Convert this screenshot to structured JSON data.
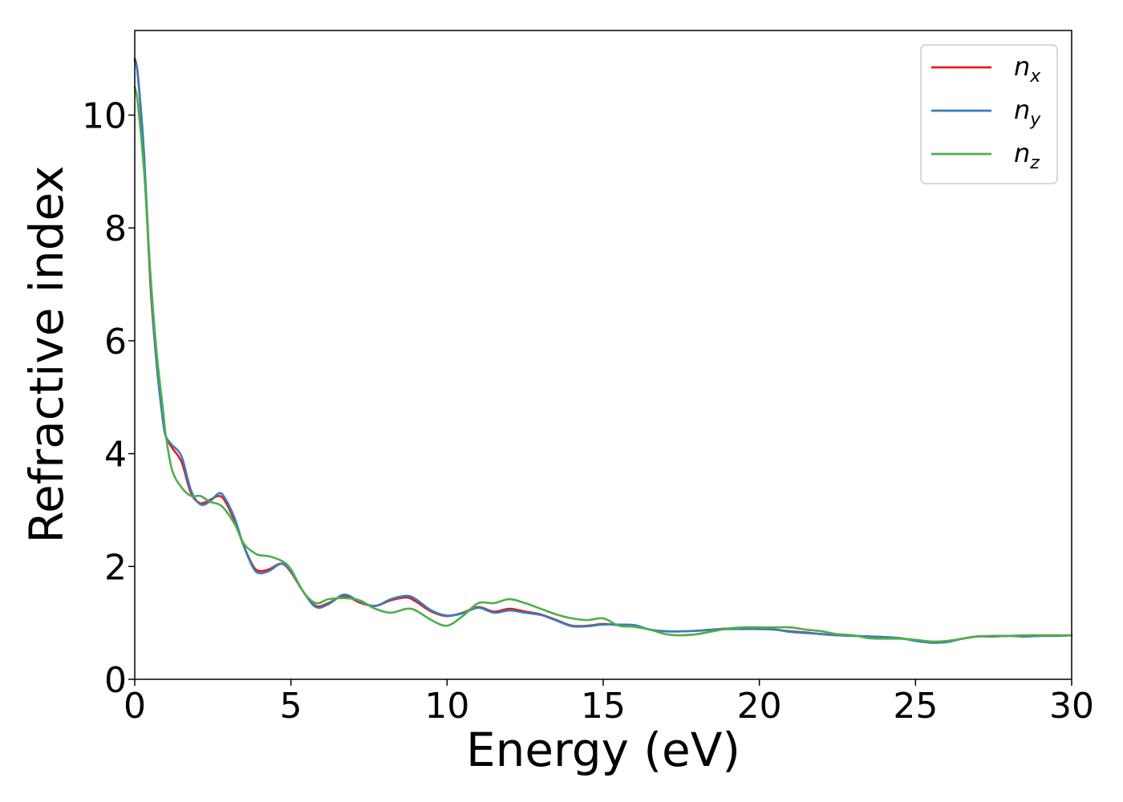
{
  "chart_data": {
    "type": "line",
    "xlabel": "Energy (eV)",
    "ylabel": "Refractive index",
    "xlim": [
      0,
      30
    ],
    "ylim": [
      0,
      11.5
    ],
    "xticks": [
      0,
      5,
      10,
      15,
      20,
      25,
      30
    ],
    "yticks": [
      0,
      2,
      4,
      6,
      8,
      10
    ],
    "grid": false,
    "legend_position": "top-right",
    "legend": [
      {
        "base": "n",
        "sub": "x"
      },
      {
        "base": "n",
        "sub": "y"
      },
      {
        "base": "n",
        "sub": "z"
      }
    ],
    "series": [
      {
        "name": "n_x",
        "color": "#e41a1c",
        "x": [
          0,
          0.1,
          0.3,
          0.5,
          0.7,
          0.9,
          1.0,
          1.2,
          1.5,
          1.8,
          2.1,
          2.4,
          2.7,
          2.9,
          3.2,
          3.5,
          3.8,
          4.0,
          4.3,
          4.7,
          5.0,
          5.4,
          5.8,
          6.2,
          6.7,
          7.2,
          7.7,
          8.2,
          8.7,
          9.0,
          9.5,
          10.0,
          10.5,
          11.0,
          11.5,
          12.0,
          12.5,
          13.0,
          13.5,
          14.0,
          14.5,
          15.0,
          15.5,
          16.0,
          16.5,
          17.0,
          17.5,
          18.0,
          18.5,
          19.0,
          19.5,
          20.0,
          20.5,
          21.0,
          21.5,
          22.0,
          22.5,
          23.0,
          23.5,
          24.0,
          24.5,
          25.0,
          25.5,
          26.0,
          26.5,
          27.0,
          27.5,
          28.0,
          28.5,
          29.0,
          29.5,
          30.0
        ],
        "y": [
          11.0,
          10.7,
          9.2,
          7.0,
          5.6,
          4.6,
          4.3,
          4.1,
          3.85,
          3.3,
          3.12,
          3.18,
          3.25,
          3.15,
          2.8,
          2.35,
          2.0,
          1.92,
          1.95,
          2.05,
          1.9,
          1.55,
          1.3,
          1.35,
          1.48,
          1.36,
          1.3,
          1.4,
          1.45,
          1.38,
          1.2,
          1.12,
          1.18,
          1.28,
          1.2,
          1.25,
          1.2,
          1.15,
          1.05,
          0.95,
          0.95,
          0.98,
          0.96,
          0.95,
          0.88,
          0.85,
          0.85,
          0.86,
          0.88,
          0.9,
          0.9,
          0.9,
          0.88,
          0.85,
          0.83,
          0.8,
          0.78,
          0.77,
          0.76,
          0.75,
          0.73,
          0.69,
          0.65,
          0.66,
          0.72,
          0.76,
          0.76,
          0.77,
          0.76,
          0.77,
          0.77,
          0.78
        ]
      },
      {
        "name": "n_y",
        "color": "#377eb8",
        "x": [
          0,
          0.1,
          0.3,
          0.5,
          0.7,
          0.9,
          1.0,
          1.2,
          1.5,
          1.8,
          2.1,
          2.4,
          2.7,
          2.9,
          3.2,
          3.5,
          3.8,
          4.0,
          4.3,
          4.7,
          5.0,
          5.4,
          5.8,
          6.2,
          6.7,
          7.2,
          7.7,
          8.2,
          8.7,
          9.0,
          9.5,
          10.0,
          10.5,
          11.0,
          11.5,
          12.0,
          12.5,
          13.0,
          13.5,
          14.0,
          14.5,
          15.0,
          15.5,
          16.0,
          16.5,
          17.0,
          17.5,
          18.0,
          18.5,
          19.0,
          19.5,
          20.0,
          20.5,
          21.0,
          21.5,
          22.0,
          22.5,
          23.0,
          23.5,
          24.0,
          24.5,
          25.0,
          25.5,
          26.0,
          26.5,
          27.0,
          27.5,
          28.0,
          28.5,
          29.0,
          29.5,
          30.0
        ],
        "y": [
          10.95,
          10.7,
          9.3,
          7.1,
          5.6,
          4.6,
          4.3,
          4.15,
          3.95,
          3.35,
          3.1,
          3.15,
          3.3,
          3.2,
          2.85,
          2.35,
          1.97,
          1.88,
          1.92,
          2.05,
          1.92,
          1.55,
          1.28,
          1.33,
          1.5,
          1.38,
          1.3,
          1.42,
          1.48,
          1.42,
          1.22,
          1.13,
          1.17,
          1.27,
          1.18,
          1.22,
          1.18,
          1.14,
          1.04,
          0.94,
          0.94,
          0.97,
          0.97,
          0.96,
          0.88,
          0.85,
          0.85,
          0.86,
          0.88,
          0.89,
          0.89,
          0.89,
          0.88,
          0.84,
          0.82,
          0.8,
          0.78,
          0.77,
          0.76,
          0.75,
          0.73,
          0.68,
          0.65,
          0.66,
          0.72,
          0.76,
          0.76,
          0.77,
          0.76,
          0.77,
          0.77,
          0.78
        ]
      },
      {
        "name": "n_z",
        "color": "#4daf4a",
        "x": [
          0,
          0.1,
          0.3,
          0.5,
          0.7,
          0.9,
          1.0,
          1.2,
          1.5,
          1.8,
          2.1,
          2.4,
          2.7,
          2.9,
          3.2,
          3.5,
          3.8,
          4.0,
          4.3,
          4.7,
          5.0,
          5.4,
          5.8,
          6.2,
          6.7,
          7.2,
          7.7,
          8.2,
          8.7,
          9.0,
          9.5,
          10.0,
          10.5,
          11.0,
          11.5,
          12.0,
          12.5,
          13.0,
          13.5,
          14.0,
          14.5,
          15.0,
          15.5,
          16.0,
          16.5,
          17.0,
          17.5,
          18.0,
          18.5,
          19.0,
          19.5,
          20.0,
          20.5,
          21.0,
          21.5,
          22.0,
          22.5,
          23.0,
          23.5,
          24.0,
          24.5,
          25.0,
          25.5,
          26.0,
          26.5,
          27.0,
          27.5,
          28.0,
          28.5,
          29.0,
          29.5,
          30.0
        ],
        "y": [
          10.5,
          10.2,
          9.0,
          7.2,
          5.8,
          4.8,
          4.3,
          3.7,
          3.4,
          3.25,
          3.25,
          3.15,
          3.1,
          3.0,
          2.75,
          2.4,
          2.25,
          2.2,
          2.18,
          2.1,
          1.95,
          1.55,
          1.35,
          1.42,
          1.44,
          1.4,
          1.25,
          1.18,
          1.25,
          1.22,
          1.05,
          0.95,
          1.12,
          1.35,
          1.35,
          1.42,
          1.35,
          1.25,
          1.15,
          1.08,
          1.05,
          1.08,
          0.95,
          0.93,
          0.88,
          0.8,
          0.78,
          0.8,
          0.85,
          0.9,
          0.92,
          0.92,
          0.92,
          0.92,
          0.88,
          0.85,
          0.8,
          0.78,
          0.73,
          0.72,
          0.72,
          0.7,
          0.67,
          0.68,
          0.72,
          0.76,
          0.77,
          0.77,
          0.78,
          0.78,
          0.78,
          0.78
        ]
      }
    ]
  }
}
